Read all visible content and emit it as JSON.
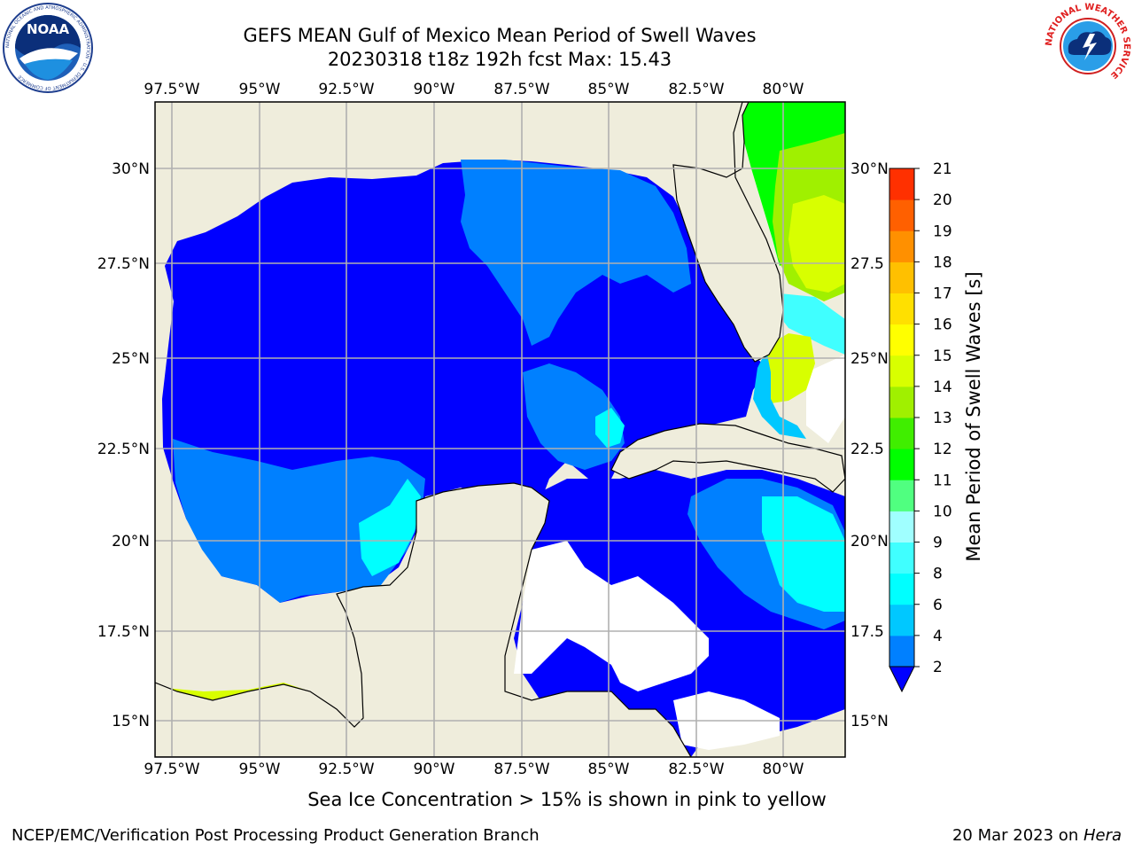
{
  "header": {
    "title_line1": "GEFS MEAN Gulf of Mexico Mean Period of Swell Waves",
    "title_line2": "20230318 t18z 192h fcst   Max: 15.43"
  },
  "logos": {
    "left": {
      "name": "noaa-logo",
      "text": "NOAA",
      "ring_text": "NATIONAL OCEANIC AND ATMOSPHERIC ADMINISTRATION · U.S. DEPARTMENT OF COMMERCE"
    },
    "right": {
      "name": "nws-logo",
      "ring_text": "NATIONAL WEATHER SERVICE"
    }
  },
  "map": {
    "lon_labels": [
      "97.5°W",
      "95°W",
      "92.5°W",
      "90°W",
      "87.5°W",
      "85°W",
      "82.5°W",
      "80°W"
    ],
    "lat_labels": [
      "30°N",
      "27.5°N",
      "25°N",
      "22.5°N",
      "20°N",
      "17.5°N",
      "15°N"
    ],
    "lat_labels_right": [
      "30°N",
      "27.5",
      "25°N",
      "22.5",
      "20°N",
      "17.5",
      "15°N"
    ],
    "colors": {
      "land": "#efeddc",
      "ocean_low": "#0000ff",
      "grid": "#b0b0b0"
    }
  },
  "colorbar": {
    "label": "Mean Period of Swell Waves [s]",
    "ticks": [
      "2",
      "4",
      "6",
      "8",
      "9",
      "10",
      "11",
      "12",
      "13",
      "14",
      "15",
      "16",
      "17",
      "18",
      "19",
      "20",
      "21"
    ],
    "colors": [
      "#0080ff",
      "#00c8ff",
      "#00ffff",
      "#40ffff",
      "#a0ffff",
      "#50ff80",
      "#00ff00",
      "#40ee00",
      "#a0f000",
      "#d8ff00",
      "#ffff00",
      "#ffe000",
      "#ffc000",
      "#ff9000",
      "#ff6000",
      "#ff3000",
      "#ff0000"
    ],
    "extend_color": "#0000ff"
  },
  "footer": {
    "ice_note": "Sea Ice Concentration > 15% is shown in pink to yellow",
    "credit": "NCEP/EMC/Verification Post Processing Product Generation Branch",
    "date": "20 Mar 2023 on ",
    "machine": "Hera"
  }
}
